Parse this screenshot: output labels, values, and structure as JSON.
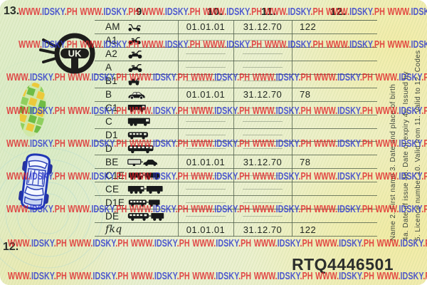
{
  "watermark": {
    "segments": [
      {
        "text": "WWW.",
        "color": "red"
      },
      {
        "text": "IDSKY",
        "color": "blue"
      },
      {
        "text": ".PH",
        "color": "red"
      }
    ],
    "repeats_per_row": 8,
    "row_count": 9
  },
  "labels": {
    "top_left": "13.",
    "bottom_left": "12."
  },
  "table": {
    "headers": [
      "9.",
      "10.",
      "11.",
      "12."
    ],
    "rows": [
      {
        "category": "AM",
        "icon": "moped-icon",
        "valid_from": "01.01.01",
        "valid_to": "31.12.70",
        "codes": "122"
      },
      {
        "category": "A1",
        "icon": "light-motorcycle-icon",
        "valid_from": "",
        "valid_to": "",
        "codes": ""
      },
      {
        "category": "A2",
        "icon": "motorcycle-icon",
        "valid_from": "",
        "valid_to": "",
        "codes": ""
      },
      {
        "category": "A",
        "icon": "motorcycle-icon",
        "valid_from": "",
        "valid_to": "",
        "codes": ""
      },
      {
        "category": "B1",
        "icon": "quadricycle-icon",
        "valid_from": "",
        "valid_to": "",
        "codes": ""
      },
      {
        "category": "B",
        "icon": "car-icon",
        "valid_from": "01.01.01",
        "valid_to": "31.12.70",
        "codes": "78"
      },
      {
        "category": "C1",
        "icon": "small-truck-icon",
        "valid_from": "",
        "valid_to": "",
        "codes": ""
      },
      {
        "category": "C",
        "icon": "truck-icon",
        "valid_from": "",
        "valid_to": "",
        "codes": ""
      },
      {
        "category": "D1",
        "icon": "minibus-icon",
        "valid_from": "",
        "valid_to": "",
        "codes": ""
      },
      {
        "category": "D",
        "icon": "bus-icon",
        "valid_from": "",
        "valid_to": "",
        "codes": ""
      },
      {
        "category": "BE",
        "icon": "car-trailer-icon",
        "valid_from": "01.01.01",
        "valid_to": "31.12.70",
        "codes": "78"
      },
      {
        "category": "C1E",
        "icon": "small-truck-trailer-icon",
        "valid_from": "",
        "valid_to": "",
        "codes": ""
      },
      {
        "category": "CE",
        "icon": "truck-trailer-icon",
        "valid_from": "",
        "valid_to": "",
        "codes": ""
      },
      {
        "category": "D1E",
        "icon": "minibus-trailer-icon",
        "valid_from": "",
        "valid_to": "",
        "codes": ""
      },
      {
        "category": "DE",
        "icon": "bus-trailer-icon",
        "valid_from": "",
        "valid_to": "",
        "codes": ""
      },
      {
        "category": "fkq",
        "icon": "",
        "valid_from": "01.01.01",
        "valid_to": "31.12.70",
        "codes": "122"
      }
    ]
  },
  "legend": {
    "line1": "Name 2. First name 3. Date and place of birth",
    "line2": "4a. Date of issue 4b. Date of expiry 4c. Issued by",
    "line3": "5. Licence number 10. Valid from 11. Valid to 12. Codes"
  },
  "licence_number": "RTQ4446501",
  "emblem": {
    "text": "UK"
  },
  "colors": {
    "watermark_red": "#e01f26",
    "watermark_blue": "#2b35cf",
    "card_green": "#e9f0d3",
    "card_yellow": "#f2edbb",
    "table_line": "#485846",
    "car_blue": "#2036b4",
    "leaf_green": "#7cc24a",
    "leaf_yellow": "#ecc93b"
  }
}
